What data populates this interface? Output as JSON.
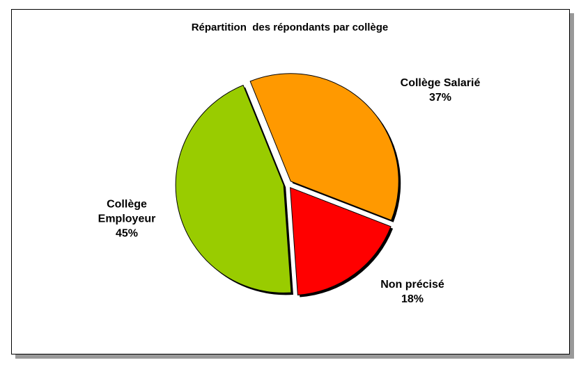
{
  "chart_data": {
    "type": "pie",
    "title": "Répartition  des répondants par collège",
    "categories": [
      "Collège Salarié",
      "Non précisé",
      "Collège Employeur"
    ],
    "values": [
      37,
      18,
      45
    ],
    "value_labels": [
      "37%",
      "18%",
      "45%"
    ],
    "colors": [
      "#ff9900",
      "#ff0000",
      "#99cc00"
    ]
  }
}
